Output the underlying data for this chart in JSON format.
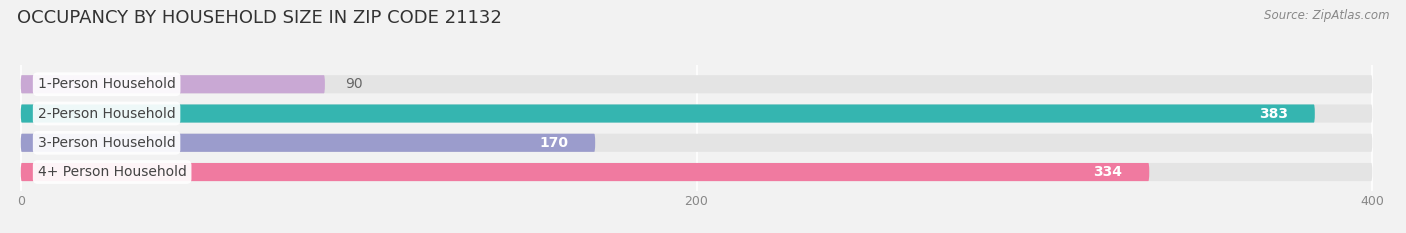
{
  "title": "OCCUPANCY BY HOUSEHOLD SIZE IN ZIP CODE 21132",
  "source": "Source: ZipAtlas.com",
  "categories": [
    "1-Person Household",
    "2-Person Household",
    "3-Person Household",
    "4+ Person Household"
  ],
  "values": [
    90,
    383,
    170,
    334
  ],
  "bar_colors": [
    "#c9a8d4",
    "#35b5b0",
    "#9b9ccc",
    "#f07aa0"
  ],
  "background_color": "#f2f2f2",
  "bar_background_color": "#e4e4e4",
  "x_max": 400,
  "xticks": [
    0,
    200,
    400
  ],
  "title_fontsize": 13,
  "label_fontsize": 10,
  "value_fontsize": 10,
  "bar_height": 0.62,
  "figsize": [
    14.06,
    2.33
  ]
}
